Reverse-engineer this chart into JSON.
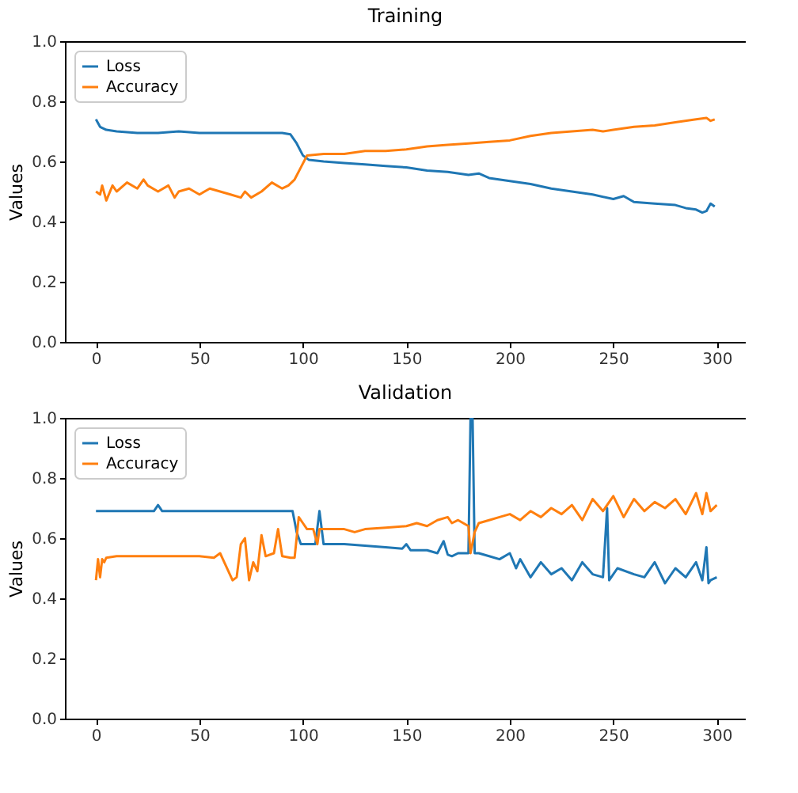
{
  "chart_data": [
    {
      "type": "line",
      "title": "Training",
      "ylabel": "Values",
      "legend": "top left",
      "grid": false,
      "xlim": [
        -15,
        314
      ],
      "xticks": [
        0,
        50,
        100,
        150,
        200,
        250,
        300
      ],
      "ylim": [
        0,
        1
      ],
      "yticks": [
        {
          "value": 0,
          "label": "0.0"
        },
        {
          "value": 0.2,
          "label": "0.2"
        },
        {
          "value": 0.4,
          "label": "0.4"
        },
        {
          "value": 0.6,
          "label": "0.6"
        },
        {
          "value": 0.8,
          "label": "0.8"
        },
        {
          "value": 1,
          "label": "1.0"
        }
      ],
      "series": [
        {
          "name": "Loss",
          "color": "#1f77b4",
          "x": [
            0,
            2,
            5,
            10,
            20,
            30,
            40,
            50,
            60,
            70,
            80,
            90,
            94,
            97,
            100,
            103,
            110,
            120,
            130,
            140,
            150,
            160,
            170,
            180,
            185,
            190,
            200,
            210,
            220,
            230,
            240,
            250,
            255,
            260,
            270,
            280,
            285,
            290,
            293,
            295,
            297,
            299
          ],
          "values": [
            0.74,
            0.715,
            0.705,
            0.7,
            0.695,
            0.695,
            0.7,
            0.695,
            0.695,
            0.695,
            0.695,
            0.695,
            0.69,
            0.66,
            0.62,
            0.605,
            0.6,
            0.595,
            0.59,
            0.585,
            0.58,
            0.57,
            0.565,
            0.555,
            0.56,
            0.545,
            0.535,
            0.525,
            0.51,
            0.5,
            0.49,
            0.475,
            0.485,
            0.465,
            0.46,
            0.455,
            0.445,
            0.44,
            0.43,
            0.435,
            0.46,
            0.45
          ]
        },
        {
          "name": "Accuracy",
          "color": "#ff7f0e",
          "x": [
            0,
            2,
            3,
            5,
            8,
            10,
            15,
            20,
            23,
            25,
            30,
            35,
            38,
            40,
            45,
            50,
            55,
            60,
            65,
            70,
            72,
            75,
            80,
            85,
            90,
            93,
            96,
            99,
            102,
            110,
            120,
            130,
            140,
            150,
            160,
            170,
            180,
            190,
            200,
            210,
            220,
            230,
            240,
            245,
            250,
            260,
            270,
            280,
            290,
            295,
            297,
            299
          ],
          "values": [
            0.5,
            0.49,
            0.52,
            0.47,
            0.52,
            0.5,
            0.53,
            0.51,
            0.54,
            0.52,
            0.5,
            0.52,
            0.48,
            0.5,
            0.51,
            0.49,
            0.51,
            0.5,
            0.49,
            0.48,
            0.5,
            0.48,
            0.5,
            0.53,
            0.51,
            0.52,
            0.54,
            0.58,
            0.62,
            0.625,
            0.625,
            0.635,
            0.635,
            0.64,
            0.65,
            0.655,
            0.66,
            0.665,
            0.67,
            0.685,
            0.695,
            0.7,
            0.705,
            0.7,
            0.705,
            0.715,
            0.72,
            0.73,
            0.74,
            0.745,
            0.735,
            0.74
          ]
        }
      ]
    },
    {
      "type": "line",
      "title": "Validation",
      "ylabel": "Values",
      "legend": "top left",
      "grid": false,
      "xlim": [
        -15,
        314
      ],
      "xticks": [
        0,
        50,
        100,
        150,
        200,
        250,
        300
      ],
      "ylim": [
        0,
        1
      ],
      "yticks": [
        {
          "value": 0,
          "label": "0.0"
        },
        {
          "value": 0.2,
          "label": "0.2"
        },
        {
          "value": 0.4,
          "label": "0.4"
        },
        {
          "value": 0.6,
          "label": "0.6"
        },
        {
          "value": 0.8,
          "label": "0.8"
        },
        {
          "value": 1,
          "label": "1.0"
        }
      ],
      "series": [
        {
          "name": "Loss",
          "color": "#1f77b4",
          "x": [
            0,
            10,
            28,
            30,
            32,
            50,
            70,
            90,
            95,
            97,
            99,
            103,
            106,
            108,
            110,
            112,
            120,
            130,
            140,
            148,
            150,
            152,
            160,
            165,
            168,
            170,
            172,
            175,
            180,
            181,
            182,
            183,
            185,
            190,
            195,
            200,
            203,
            205,
            210,
            215,
            220,
            225,
            230,
            235,
            240,
            245,
            247,
            248,
            249,
            252,
            260,
            265,
            270,
            275,
            280,
            285,
            290,
            293,
            295,
            296,
            297,
            300
          ],
          "values": [
            0.69,
            0.69,
            0.69,
            0.71,
            0.69,
            0.69,
            0.69,
            0.69,
            0.69,
            0.62,
            0.58,
            0.58,
            0.58,
            0.69,
            0.58,
            0.58,
            0.58,
            0.575,
            0.57,
            0.565,
            0.58,
            0.56,
            0.56,
            0.55,
            0.59,
            0.545,
            0.54,
            0.55,
            0.55,
            1.0,
            1.0,
            0.55,
            0.55,
            0.54,
            0.53,
            0.55,
            0.5,
            0.53,
            0.47,
            0.52,
            0.48,
            0.5,
            0.46,
            0.52,
            0.48,
            0.47,
            0.7,
            0.46,
            0.47,
            0.5,
            0.48,
            0.47,
            0.52,
            0.45,
            0.5,
            0.47,
            0.52,
            0.46,
            0.57,
            0.45,
            0.46,
            0.47
          ]
        },
        {
          "name": "Accuracy",
          "color": "#ff7f0e",
          "x": [
            0,
            1,
            2,
            3,
            4,
            5,
            10,
            30,
            50,
            57,
            60,
            62,
            66,
            68,
            70,
            72,
            74,
            76,
            78,
            80,
            82,
            86,
            88,
            90,
            94,
            96,
            98,
            100,
            102,
            105,
            107,
            108,
            110,
            120,
            125,
            130,
            140,
            150,
            155,
            160,
            165,
            170,
            172,
            175,
            180,
            181,
            183,
            185,
            190,
            195,
            200,
            205,
            210,
            215,
            220,
            225,
            230,
            235,
            240,
            245,
            250,
            255,
            260,
            265,
            270,
            275,
            280,
            285,
            290,
            293,
            295,
            297,
            300
          ],
          "values": [
            0.46,
            0.53,
            0.47,
            0.53,
            0.52,
            0.535,
            0.54,
            0.54,
            0.54,
            0.535,
            0.55,
            0.52,
            0.46,
            0.47,
            0.58,
            0.6,
            0.46,
            0.52,
            0.49,
            0.61,
            0.54,
            0.55,
            0.63,
            0.54,
            0.535,
            0.535,
            0.67,
            0.65,
            0.63,
            0.63,
            0.58,
            0.63,
            0.63,
            0.63,
            0.62,
            0.63,
            0.635,
            0.64,
            0.65,
            0.64,
            0.66,
            0.67,
            0.65,
            0.66,
            0.64,
            0.55,
            0.62,
            0.65,
            0.66,
            0.67,
            0.68,
            0.66,
            0.69,
            0.67,
            0.7,
            0.68,
            0.71,
            0.66,
            0.73,
            0.69,
            0.74,
            0.67,
            0.73,
            0.69,
            0.72,
            0.7,
            0.73,
            0.68,
            0.75,
            0.68,
            0.75,
            0.69,
            0.71
          ]
        }
      ]
    }
  ]
}
